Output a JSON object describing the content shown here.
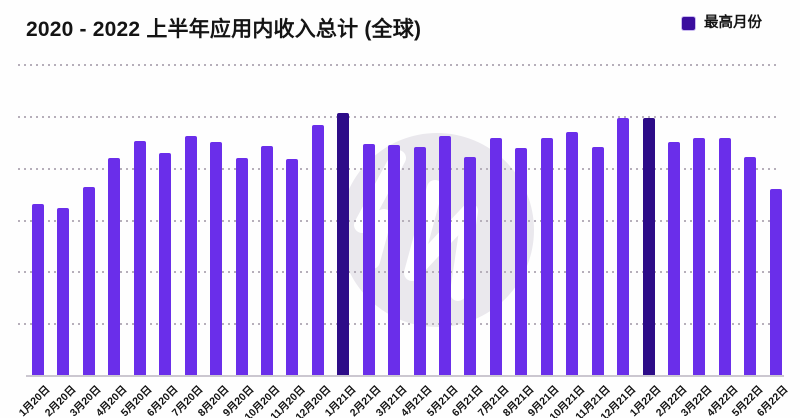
{
  "header": {
    "title": "2020 - 2022 上半年应用内收入总计 (全球)"
  },
  "legend": {
    "label": "最高月份",
    "color": "#3A0D9E"
  },
  "watermark": {
    "icon": "circular-logo-watermark",
    "circle_color": "#EAE8ED",
    "glyph_color": "#FFFFFF"
  },
  "chart_data": {
    "type": "bar",
    "title": "2020 - 2022 上半年应用内收入总计 (全球)",
    "legend_entries": [
      "最高月份"
    ],
    "categories": [
      "1月20日",
      "2月20日",
      "3月20日",
      "4月20日",
      "5月20日",
      "6月20日",
      "7月20日",
      "8月20日",
      "9月20日",
      "10月20日",
      "11月20日",
      "12月20日",
      "1月21日",
      "2月21日",
      "3月21日",
      "4月21日",
      "5月21日",
      "6月21日",
      "7月21日",
      "8月21日",
      "9月21日",
      "10月21日",
      "11月21日",
      "12月21日",
      "1月22日",
      "2月22日",
      "3月22日",
      "4月22日",
      "5月22日",
      "6月22日"
    ],
    "values_relative_pct": [
      55.0,
      53.7,
      60.5,
      69.8,
      75.2,
      71.4,
      76.8,
      74.9,
      69.8,
      73.6,
      69.5,
      80.4,
      84.2,
      74.3,
      74.0,
      73.3,
      76.8,
      70.1,
      76.2,
      73.0,
      76.2,
      78.1,
      73.3,
      82.6,
      82.6,
      74.9,
      76.2,
      76.2,
      70.1,
      59.8
    ],
    "highlighted_categories": [
      "1月21日",
      "1月22日"
    ],
    "bar_color": "#6A2EEA",
    "highlight_color": "#2D0C88",
    "gridlines": {
      "count": 6,
      "style": "dotted",
      "orientation": "horizontal"
    },
    "y_axis": {
      "tick_labels_visible": false,
      "range_pct": [
        0,
        100
      ]
    },
    "x_tick_rotation_deg": -45,
    "legend_position": "top-right"
  }
}
